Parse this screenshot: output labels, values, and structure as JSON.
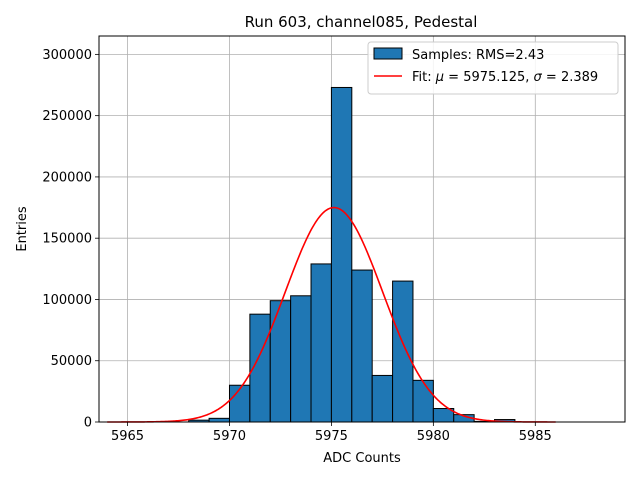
{
  "chart_data": {
    "type": "bar",
    "title": "Run 603, channel085, Pedestal",
    "xlabel": "ADC Counts",
    "ylabel": "Entries",
    "xlim": [
      5963.6,
      5989.4
    ],
    "ylim": [
      0,
      315000
    ],
    "xticks": [
      5965,
      5970,
      5975,
      5980,
      5985
    ],
    "yticks": [
      0,
      50000,
      100000,
      150000,
      200000,
      250000,
      300000
    ],
    "grid": true,
    "legend": {
      "position": "top-right"
    },
    "histogram": {
      "name": "Samples: RMS=2.43",
      "color": "#1f77b4",
      "edgecolor": "#000000",
      "bin_edges": [
        5968,
        5969,
        5970,
        5971,
        5972,
        5973,
        5974,
        5975,
        5976,
        5977,
        5978,
        5979,
        5980,
        5981,
        5982,
        5983,
        5984
      ],
      "counts": [
        1500,
        3000,
        30000,
        88000,
        99000,
        103000,
        129000,
        273000,
        124000,
        38000,
        115000,
        34000,
        11000,
        6000,
        500,
        2000
      ]
    },
    "fit": {
      "label_prefix": "Fit: ",
      "mu_label": "μ",
      "mu_value": "5975.125",
      "sigma_label": "σ",
      "sigma_value": "2.389",
      "mu": 5975.125,
      "sigma": 2.389,
      "amplitude": 175000,
      "x_range": [
        5964,
        5986
      ],
      "color": "#ff0000"
    }
  }
}
